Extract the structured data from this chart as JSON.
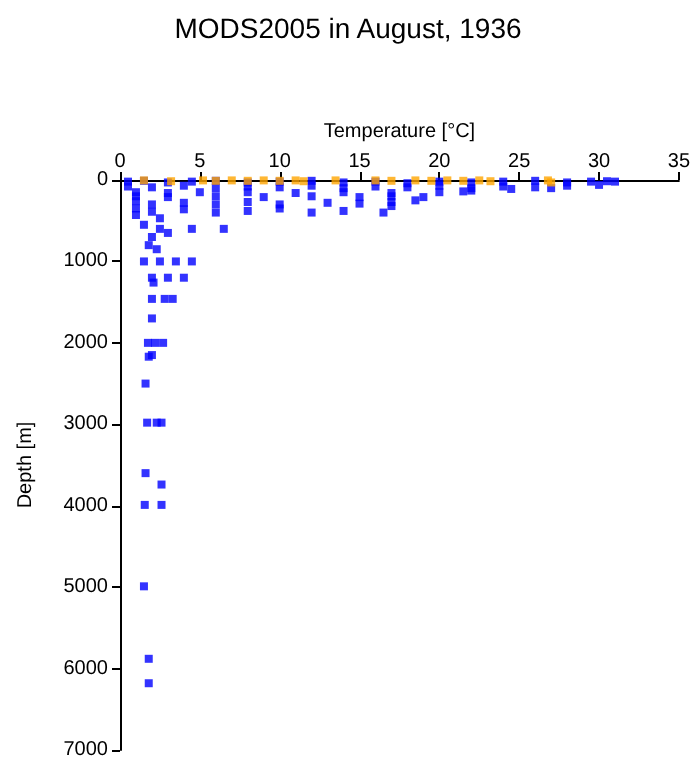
{
  "chart_data": {
    "type": "scatter",
    "title": "MODS2005 in August, 1936",
    "xlabel": "Temperature [°C]",
    "ylabel": "Depth [m]",
    "xlim": [
      0,
      35
    ],
    "xticks": [
      0,
      5,
      10,
      15,
      20,
      25,
      30,
      35
    ],
    "ylim": [
      7000,
      0
    ],
    "yticks": [
      0,
      1000,
      2000,
      3000,
      4000,
      5000,
      6000,
      7000
    ],
    "grid": false,
    "marker": "square",
    "series": [
      {
        "color": "#0000ff",
        "x": [
          0.5,
          1.5,
          3,
          4.5,
          6,
          8,
          10,
          12,
          14,
          16,
          18,
          20,
          22,
          24,
          26,
          28,
          29.5,
          30.5,
          31,
          0.5,
          2,
          4,
          6,
          8,
          10,
          12,
          14,
          16,
          18,
          20,
          22,
          24,
          26,
          28,
          30,
          22,
          24.5,
          27,
          1,
          3,
          5,
          8,
          11,
          14,
          17,
          20,
          21.5,
          1,
          3,
          6,
          9,
          12,
          15,
          17,
          19,
          18.5,
          1,
          2,
          4,
          6,
          8,
          10,
          13,
          15,
          17,
          1,
          2,
          4,
          6,
          8,
          10,
          12,
          14,
          16.5,
          17,
          1,
          2.5,
          1.5,
          2.5,
          3,
          4.5,
          6.5,
          2,
          1.8,
          2.3,
          1.5,
          2.5,
          3.5,
          4.5,
          2,
          3,
          4,
          2.1,
          2,
          2.8,
          3.3,
          2,
          1.75,
          2.2,
          2.7,
          1.8,
          2,
          1.6,
          1.7,
          2.3,
          2.6,
          1.6,
          2.6,
          1.55,
          2.6,
          1.5,
          1.8,
          1.8
        ],
        "values": [
          20,
          10,
          30,
          20,
          10,
          30,
          20,
          10,
          30,
          20,
          40,
          20,
          30,
          20,
          10,
          30,
          20,
          15,
          20,
          80,
          90,
          70,
          100,
          80,
          90,
          70,
          100,
          80,
          90,
          70,
          100,
          80,
          90,
          70,
          60,
          130,
          110,
          100,
          150,
          160,
          150,
          150,
          160,
          150,
          160,
          150,
          140,
          200,
          210,
          200,
          210,
          200,
          210,
          200,
          210,
          250,
          260,
          300,
          280,
          300,
          270,
          300,
          280,
          290,
          270,
          350,
          390,
          360,
          400,
          380,
          350,
          400,
          380,
          400,
          320,
          430,
          470,
          550,
          600,
          650,
          600,
          600,
          700,
          800,
          850,
          1000,
          1000,
          1000,
          1000,
          1200,
          1200,
          1200,
          1260,
          1460,
          1460,
          1460,
          1700,
          2000,
          2000,
          2000,
          2170,
          2150,
          2500,
          2980,
          2980,
          2980,
          3600,
          3740,
          3990,
          3990,
          4990,
          5880,
          6180
        ]
      },
      {
        "color": "#ffa500",
        "x": [
          1.5,
          3.2,
          5.2,
          6,
          7,
          8,
          9,
          10,
          11,
          11.5,
          13.5,
          16,
          17,
          18.5,
          19.5,
          20.5,
          21.5,
          22.5,
          23.2,
          26.8,
          27
        ],
        "values": [
          5,
          15,
          5,
          10,
          5,
          10,
          5,
          10,
          5,
          15,
          5,
          5,
          10,
          5,
          10,
          5,
          10,
          5,
          15,
          5,
          30
        ]
      }
    ]
  }
}
